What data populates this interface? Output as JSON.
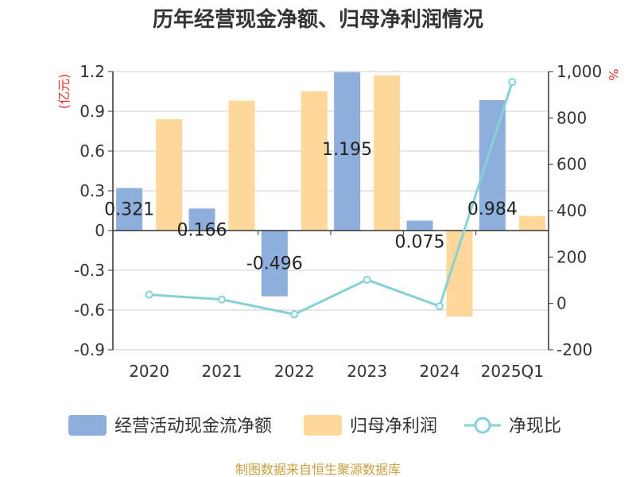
{
  "chart_data": {
    "type": "bar",
    "title": "历年经营现金净额、归母净利润情况",
    "categories": [
      "2020",
      "2021",
      "2022",
      "2023",
      "2024",
      "2025Q1"
    ],
    "y_left": {
      "unit": "(亿元)",
      "ylim": [
        -0.9,
        1.2
      ],
      "ticks": [
        "1.2",
        "0.9",
        "0.6",
        "0.3",
        "0",
        "-0.3",
        "-0.6",
        "-0.9"
      ]
    },
    "y_right": {
      "unit": "%",
      "ylim": [
        -200,
        1000
      ],
      "ticks": [
        "1,000",
        "800",
        "600",
        "400",
        "200",
        "0",
        "-200"
      ]
    },
    "series": [
      {
        "name": "经营活动现金流净额",
        "type": "bar",
        "axis": "left",
        "color": "#8eaedb",
        "values": [
          0.321,
          0.166,
          -0.496,
          1.195,
          0.075,
          0.984
        ],
        "labels": [
          "0.321",
          "0.166",
          "-0.496",
          "1.195",
          "0.075",
          "0.984"
        ]
      },
      {
        "name": "归母净利润",
        "type": "bar",
        "axis": "left",
        "color": "#fdd89a",
        "values": [
          0.84,
          0.98,
          1.05,
          1.17,
          -0.65,
          0.11
        ]
      },
      {
        "name": "净现比",
        "type": "line",
        "axis": "right",
        "color": "#86d1d6",
        "values": [
          38,
          17,
          -47,
          102,
          -12,
          955
        ]
      }
    ],
    "grid": true,
    "legend": "bottom"
  },
  "source": "制图数据来自恒生聚源数据库"
}
